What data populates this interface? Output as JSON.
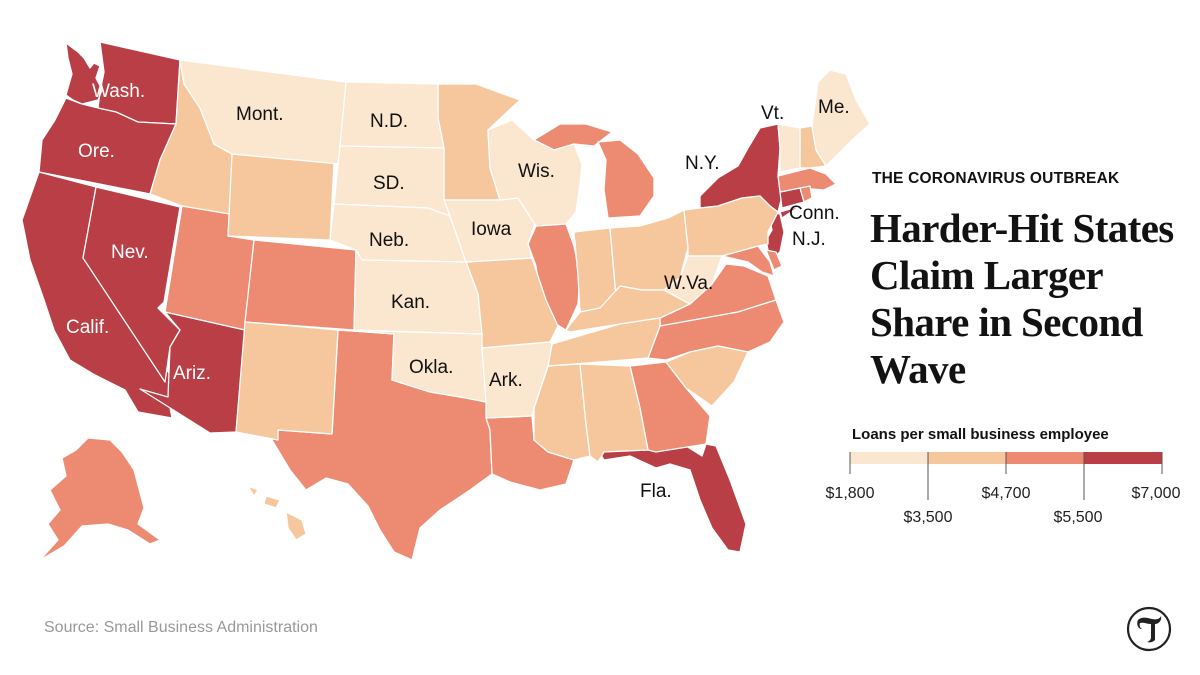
{
  "kicker": "THE CORONAVIRUS OUTBREAK",
  "headline": "Harder-Hit States Claim Larger Share in Second Wave",
  "source": "Source: Small Business Administration",
  "legend": {
    "title": "Loans per small business employee",
    "colors": [
      "#fbe6cf",
      "#f6c79c",
      "#ed8a72",
      "#b93e45"
    ],
    "upper_ticks": [
      "$1,800",
      "$4,700",
      "$7,000"
    ],
    "lower_ticks": [
      "$3,500",
      "$5,500"
    ]
  },
  "palette": {
    "bin1": "#fbe6cf",
    "bin2": "#f6c79c",
    "bin3": "#ed8a72",
    "bin4": "#b93e45"
  },
  "state_labels": {
    "wash": "Wash.",
    "ore": "Ore.",
    "calif": "Calif.",
    "nev": "Nev.",
    "ariz": "Ariz.",
    "mont": "Mont.",
    "nd": "N.D.",
    "sd": "SD.",
    "neb": "Neb.",
    "kan": "Kan.",
    "okla": "Okla.",
    "ark": "Ark.",
    "iowa": "Iowa",
    "wis": "Wis.",
    "ny": "N.Y.",
    "vt": "Vt.",
    "me": "Me.",
    "conn": "Conn.",
    "nj": "N.J.",
    "wva": "W.Va.",
    "fla": "Fla."
  },
  "logo_icon": "nyt-t-logo-icon"
}
